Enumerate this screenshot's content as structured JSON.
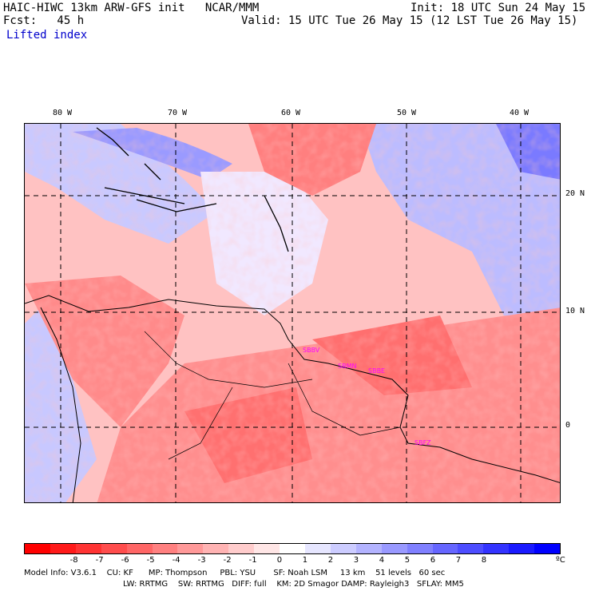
{
  "header": {
    "line1_left": "HAIC-HIWC 13km ARW-GFS init   NCAR/MMM",
    "line1_right": "Init: 18 UTC Sun 24 May 15",
    "line2_left": "Fcst:   45 h",
    "line2_right": "Valid: 15 UTC Tue 26 May 15 (12 LST Tue 26 May 15)",
    "field": "Lifted index"
  },
  "lon_labels": [
    "80 W",
    "70 W",
    "60 W",
    "50 W",
    "40 W"
  ],
  "lat_labels": [
    "20 N",
    "10 N",
    "0"
  ],
  "stations": [
    "SBBV",
    "SBMN",
    "SBBE",
    "SBFZ"
  ],
  "colorbar": {
    "colors": [
      "#ff0000",
      "#ff1a1a",
      "#ff3333",
      "#ff4d4d",
      "#ff6666",
      "#ff8080",
      "#ff9999",
      "#ffb3b3",
      "#ffcccc",
      "#ffe6e6",
      "#ffffff",
      "#e6e6ff",
      "#ccccff",
      "#b3b3ff",
      "#9999ff",
      "#8080ff",
      "#6666ff",
      "#4d4dff",
      "#3333ff",
      "#1a1aff",
      "#0000ff"
    ],
    "ticks": [
      "-8",
      "-7",
      "-6",
      "-5",
      "-4",
      "-3",
      "-2",
      "-1",
      "0",
      "1",
      "2",
      "3",
      "4",
      "5",
      "6",
      "7",
      "8"
    ],
    "unit": "ºC"
  },
  "footer": {
    "line1": "Model Info: V3.6.1    CU: KF      MP: Thompson     PBL: YSU       SF: Noah LSM     13 km    51 levels   60 sec",
    "line2": "LW: RRTMG    SW: RRTMG   DIFF: full    KM: 2D Smagor DAMP: Rayleigh3   SFLAY: MM5"
  }
}
